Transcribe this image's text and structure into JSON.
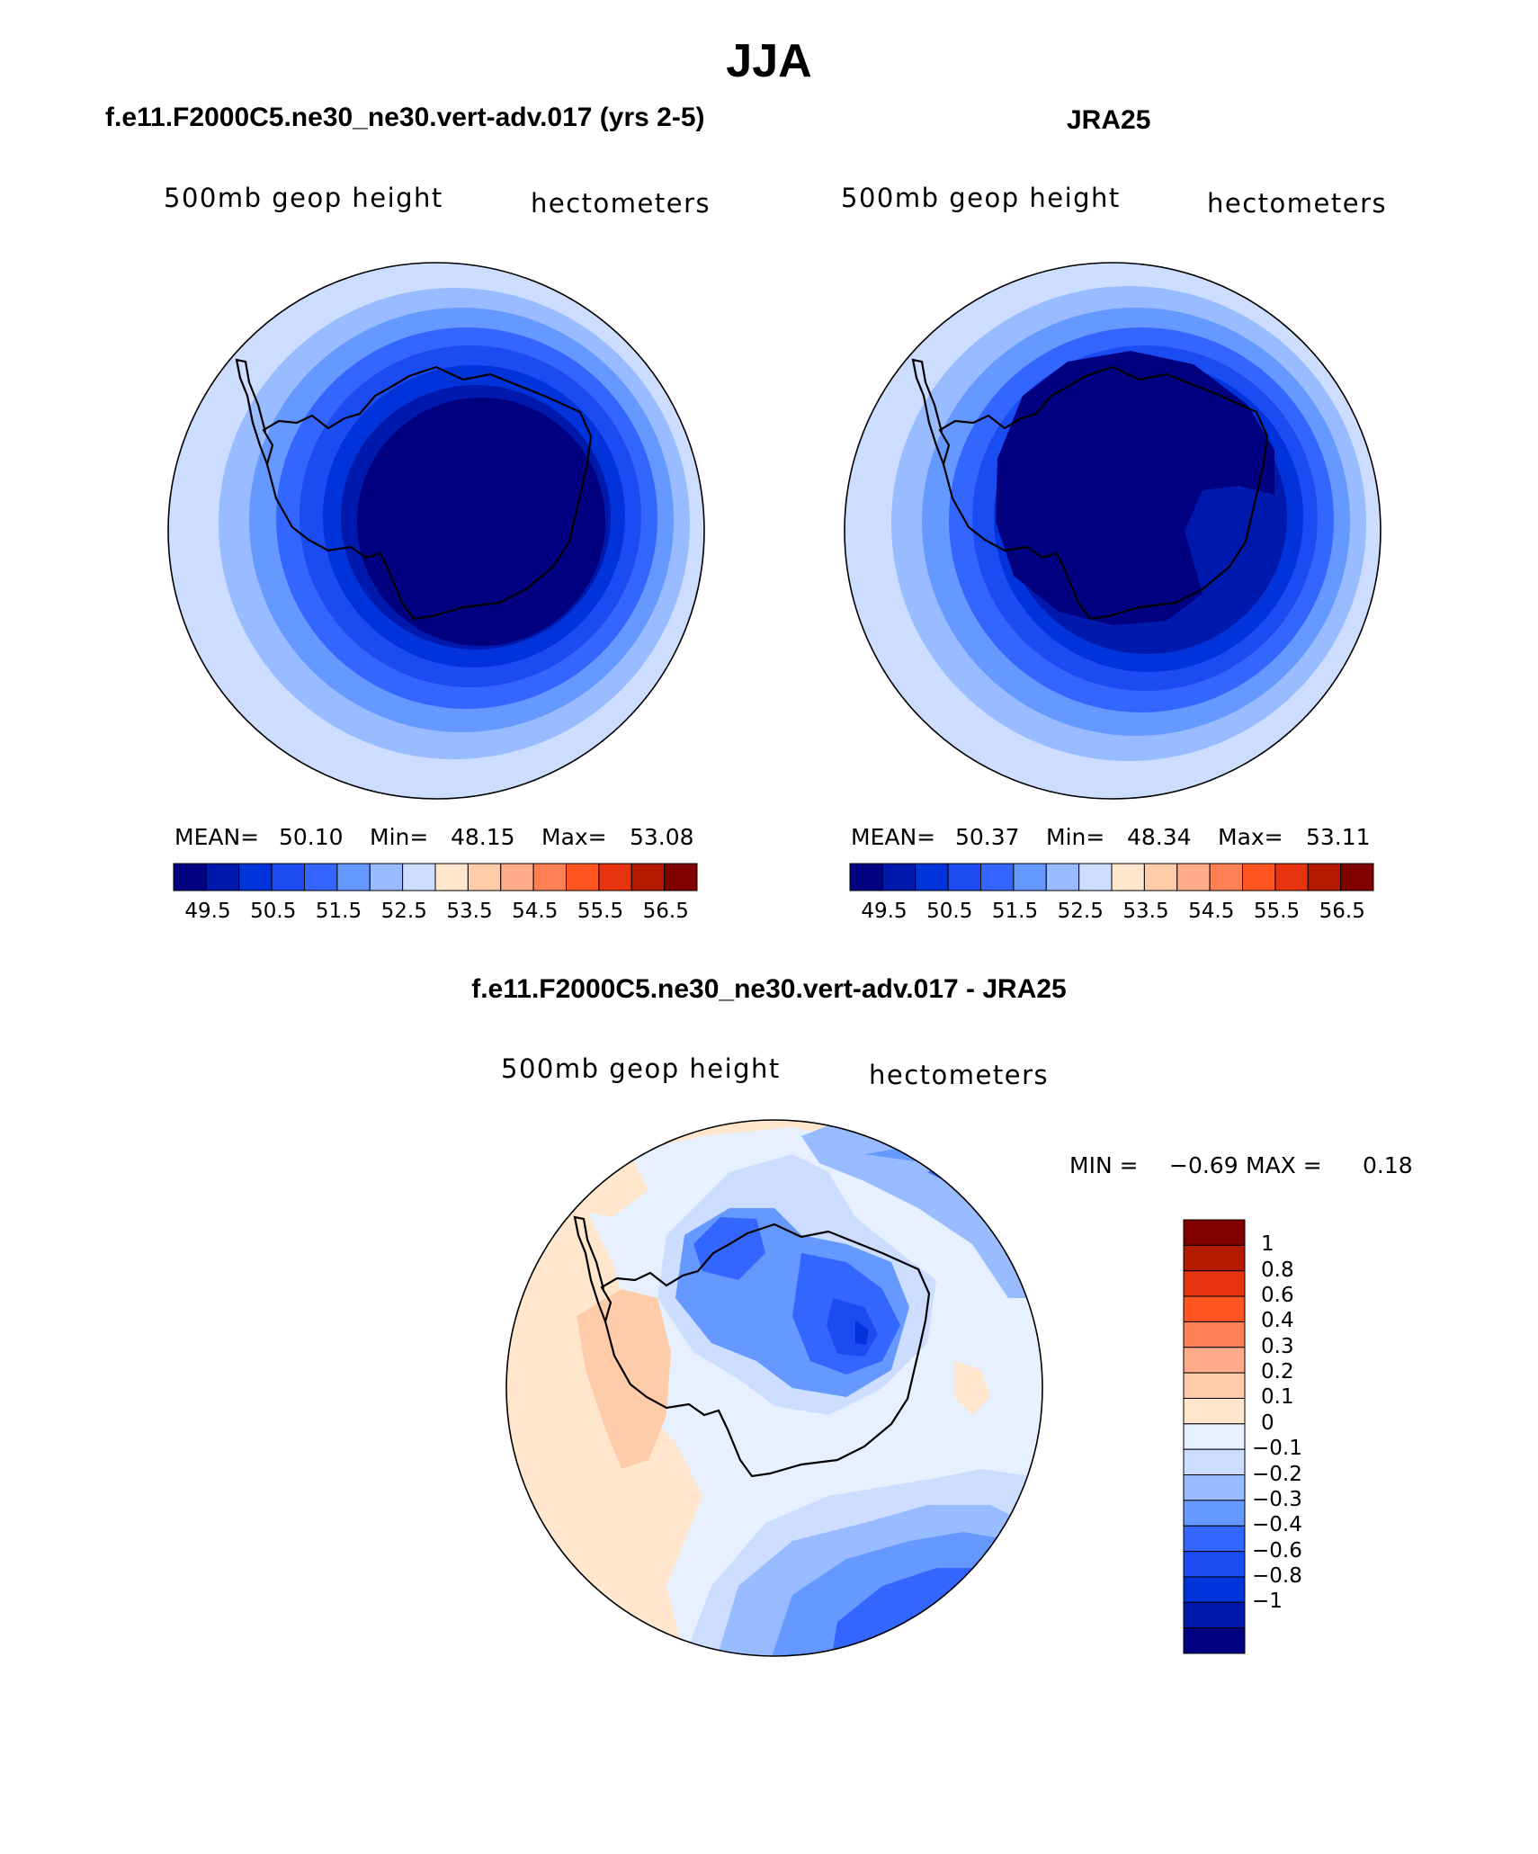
{
  "figure": {
    "title": "JJA"
  },
  "colorbar": {
    "colors": [
      "#000080",
      "#0019ad",
      "#0033d9",
      "#1a4cf2",
      "#3366ff",
      "#6699ff",
      "#99bbff",
      "#ccddff",
      "#ffe6cc",
      "#ffccaa",
      "#ffaa88",
      "#ff8055",
      "#ff5522",
      "#e63310",
      "#b31a00",
      "#800000"
    ],
    "tick_labels": [
      "49.5",
      "50.5",
      "51.5",
      "52.5",
      "53.5",
      "54.5",
      "55.5",
      "56.5"
    ]
  },
  "panels": {
    "model": {
      "title": "f.e11.F2000C5.ne30_ne30.vert-adv.017 (yrs 2-5)",
      "left_label": "500mb geop height",
      "right_label": "hectometers",
      "stats": {
        "mean_label": "MEAN=",
        "mean": "50.10",
        "min_label": "Min=",
        "min": "48.15",
        "max_label": "Max=",
        "max": "53.08"
      }
    },
    "obs": {
      "title": "JRA25",
      "left_label": "500mb geop height",
      "right_label": "hectometers",
      "stats": {
        "mean_label": "MEAN=",
        "mean": "50.37",
        "min_label": "Min=",
        "min": "48.34",
        "max_label": "Max=",
        "max": "53.11"
      }
    },
    "diff": {
      "title": "f.e11.F2000C5.ne30_ne30.vert-adv.017 - JRA25",
      "left_label": "500mb geop height",
      "right_label": "hectometers",
      "minmax": {
        "min_label": "MIN =",
        "min": "−0.69",
        "max_label": "MAX =",
        "max": "0.18"
      },
      "colorbar": {
        "colors": [
          "#800000",
          "#b31a00",
          "#e63310",
          "#ff5522",
          "#ff8055",
          "#ffaa88",
          "#ffccaa",
          "#ffe6cc",
          "#e6f0ff",
          "#ccddff",
          "#99bbff",
          "#6699ff",
          "#3366ff",
          "#1a4cf2",
          "#0033d9",
          "#0019ad",
          "#000080"
        ],
        "tick_labels": [
          "1",
          "0.8",
          "0.6",
          "0.4",
          "0.3",
          "0.2",
          "0.1",
          "0",
          "−0.1",
          "−0.2",
          "−0.3",
          "−0.4",
          "−0.6",
          "−0.8",
          "−1"
        ]
      }
    }
  }
}
